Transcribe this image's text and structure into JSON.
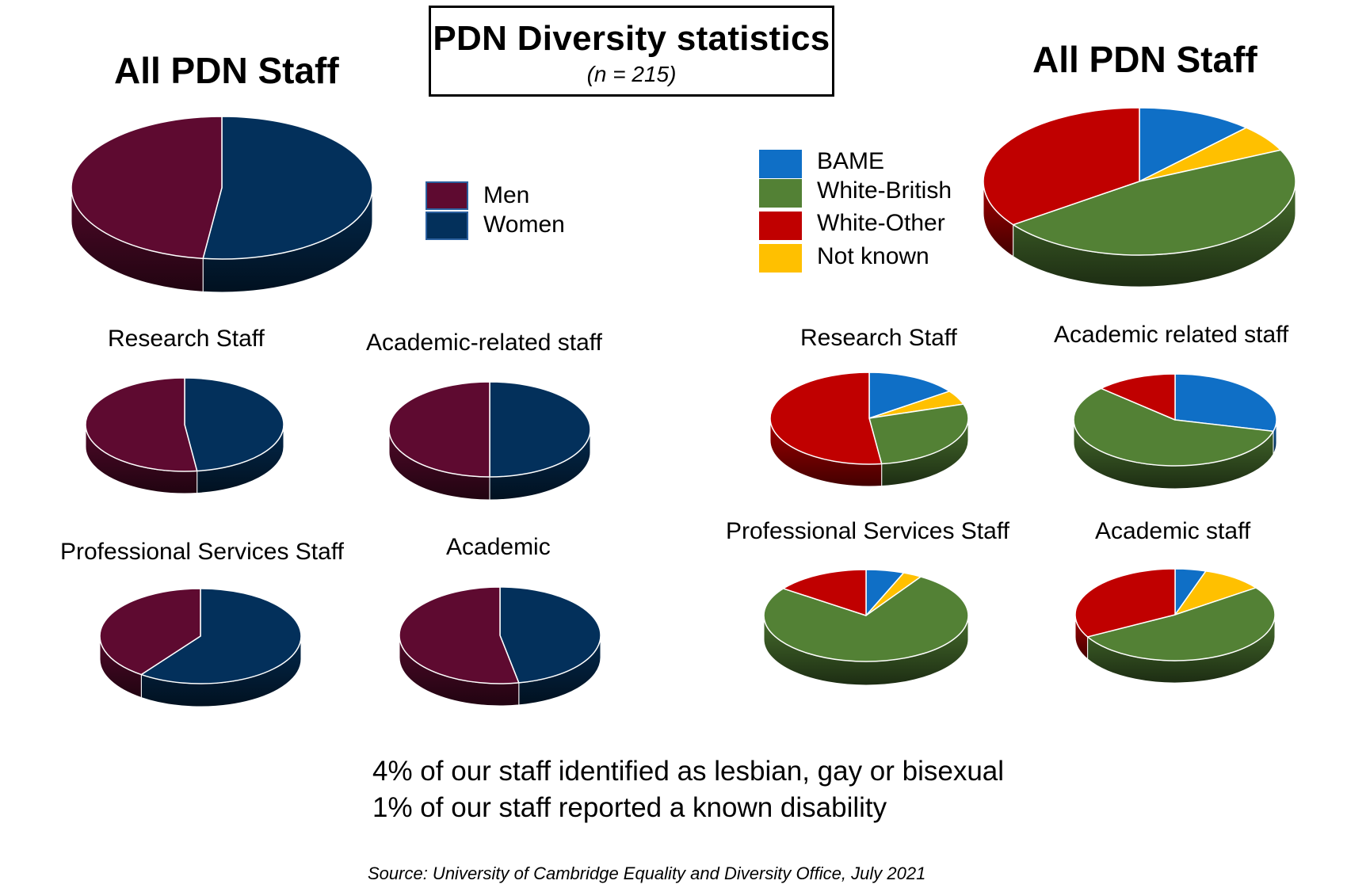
{
  "header": {
    "title": "PDN Diversity statistics",
    "subtitle": "(n = 215)"
  },
  "legend_gender": {
    "items": [
      {
        "label": "Men",
        "color": "#5e0a30"
      },
      {
        "label": "Women",
        "color": "#03305b"
      }
    ]
  },
  "legend_ethnicity": {
    "items": [
      {
        "label": "BAME",
        "color": "#0f6fc6"
      },
      {
        "label": "White-British",
        "color": "#538135"
      },
      {
        "label": "White-Other",
        "color": "#c00000"
      },
      {
        "label": "Not known",
        "color": "#ffc000"
      }
    ]
  },
  "chart_data": [
    {
      "type": "pie",
      "title": "All PDN Staff",
      "group": "gender",
      "categories": [
        "Women",
        "Men"
      ],
      "values": [
        52,
        48
      ]
    },
    {
      "type": "pie",
      "title": "Research Staff",
      "group": "gender",
      "categories": [
        "Women",
        "Men"
      ],
      "values": [
        48,
        52
      ]
    },
    {
      "type": "pie",
      "title": "Academic-related staff",
      "group": "gender",
      "categories": [
        "Women",
        "Men"
      ],
      "values": [
        50,
        50
      ]
    },
    {
      "type": "pie",
      "title": "Professional Services Staff",
      "group": "gender",
      "categories": [
        "Women",
        "Men"
      ],
      "values": [
        60,
        40
      ]
    },
    {
      "type": "pie",
      "title": "Academic",
      "group": "gender",
      "categories": [
        "Women",
        "Men"
      ],
      "values": [
        47,
        53
      ]
    },
    {
      "type": "pie",
      "title": "All PDN Staff",
      "group": "ethnicity",
      "categories": [
        "BAME",
        "Not known",
        "White-British",
        "White-Other"
      ],
      "values": [
        12,
        6,
        47,
        35
      ]
    },
    {
      "type": "pie",
      "title": "Research Staff",
      "group": "ethnicity",
      "categories": [
        "BAME",
        "Not known",
        "White-British",
        "White-Other"
      ],
      "values": [
        15,
        5,
        28,
        52
      ]
    },
    {
      "type": "pie",
      "title": "Academic related staff",
      "group": "ethnicity",
      "categories": [
        "BAME",
        "Not known",
        "White-British",
        "White-Other"
      ],
      "values": [
        29,
        0,
        58,
        13
      ]
    },
    {
      "type": "pie",
      "title": "Professional Services Staff",
      "group": "ethnicity",
      "categories": [
        "BAME",
        "Not known",
        "White-British",
        "White-Other"
      ],
      "values": [
        6,
        3,
        76,
        15
      ]
    },
    {
      "type": "pie",
      "title": "Academic staff",
      "group": "ethnicity",
      "categories": [
        "BAME",
        "Not known",
        "White-British",
        "White-Other"
      ],
      "values": [
        5,
        10,
        52,
        33
      ]
    }
  ],
  "stats": {
    "line1": "4% of our staff identified as lesbian, gay or bisexual",
    "line2": "1% of our staff reported a known disability"
  },
  "source": "Source: University of Cambridge Equality and Diversity Office, July 2021"
}
